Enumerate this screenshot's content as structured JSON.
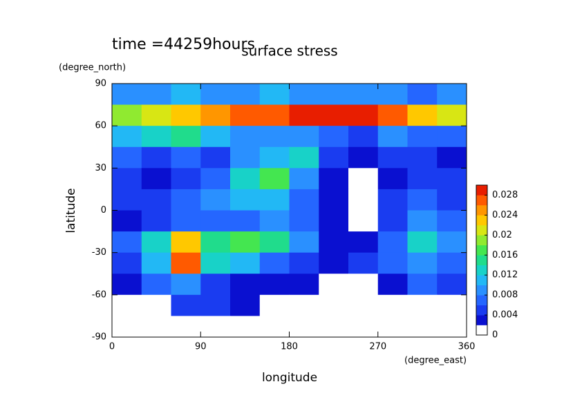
{
  "chart_data": {
    "type": "contour",
    "title": "surface stress",
    "subtitle": "time =44259hours",
    "x_label": "longitude",
    "x_unit": "(degree_east)",
    "y_label": "latitude",
    "y_unit": "(degree_north)",
    "xlim": [
      0,
      360
    ],
    "ylim": [
      -90,
      90
    ],
    "xticks": [
      0,
      90,
      180,
      270,
      360
    ],
    "yticks": [
      90,
      60,
      30,
      0,
      -30,
      -60,
      -90
    ],
    "x": [
      15,
      45,
      75,
      105,
      135,
      165,
      195,
      225,
      255,
      285,
      315,
      345
    ],
    "y": [
      82.5,
      67.5,
      52.5,
      37.5,
      22.5,
      7.5,
      -7.5,
      -22.5,
      -37.5,
      -52.5,
      -67.5,
      -82.5
    ],
    "z": [
      [
        0.008,
        0.008,
        0.01,
        0.008,
        0.008,
        0.01,
        0.008,
        0.008,
        0.008,
        0.008,
        0.006,
        0.008
      ],
      [
        0.018,
        0.02,
        0.022,
        0.024,
        0.026,
        0.026,
        0.03,
        0.03,
        0.028,
        0.026,
        0.022,
        0.02
      ],
      [
        0.01,
        0.012,
        0.014,
        0.01,
        0.008,
        0.008,
        0.008,
        0.006,
        0.004,
        0.008,
        0.006,
        0.006
      ],
      [
        0.006,
        0.004,
        0.006,
        0.004,
        0.008,
        0.01,
        0.012,
        0.004,
        0.002,
        0.004,
        0.004,
        0.002
      ],
      [
        0.004,
        0.002,
        0.004,
        0.006,
        0.012,
        0.016,
        0.008,
        0.002,
        0,
        0.002,
        0.004,
        0.004
      ],
      [
        0.004,
        0.004,
        0.006,
        0.008,
        0.01,
        0.01,
        0.006,
        0.002,
        0,
        0.004,
        0.006,
        0.004
      ],
      [
        0.002,
        0.004,
        0.006,
        0.006,
        0.006,
        0.008,
        0.006,
        0.002,
        0,
        0.004,
        0.008,
        0.006
      ],
      [
        0.006,
        0.012,
        0.022,
        0.014,
        0.016,
        0.014,
        0.008,
        0.002,
        0.002,
        0.006,
        0.012,
        0.008
      ],
      [
        0.004,
        0.01,
        0.026,
        0.012,
        0.01,
        0.006,
        0.004,
        0.002,
        0.004,
        0.006,
        0.008,
        0.006
      ],
      [
        0.002,
        0.006,
        0.008,
        0.004,
        0.002,
        0.002,
        0.002,
        0,
        0,
        0.002,
        0.006,
        0.004
      ],
      [
        0,
        0,
        0.004,
        0.004,
        0.002,
        0,
        0,
        0,
        0,
        0,
        0,
        0
      ],
      [
        0,
        0,
        0,
        0,
        0,
        0,
        0,
        0,
        0,
        0,
        0,
        0
      ]
    ],
    "zlim": [
      0,
      0.03
    ],
    "zticks": [
      0,
      0.004,
      0.008,
      0.012,
      0.016,
      0.02,
      0.024,
      0.028
    ],
    "colors": [
      "#ffffff",
      "#0a10d0",
      "#1a3cf0",
      "#2566ff",
      "#2a90ff",
      "#22b8f5",
      "#18d2c8",
      "#20dc8c",
      "#44e650",
      "#90ea30",
      "#d8e614",
      "#ffc800",
      "#ff9600",
      "#ff5a00",
      "#e81e00"
    ]
  }
}
